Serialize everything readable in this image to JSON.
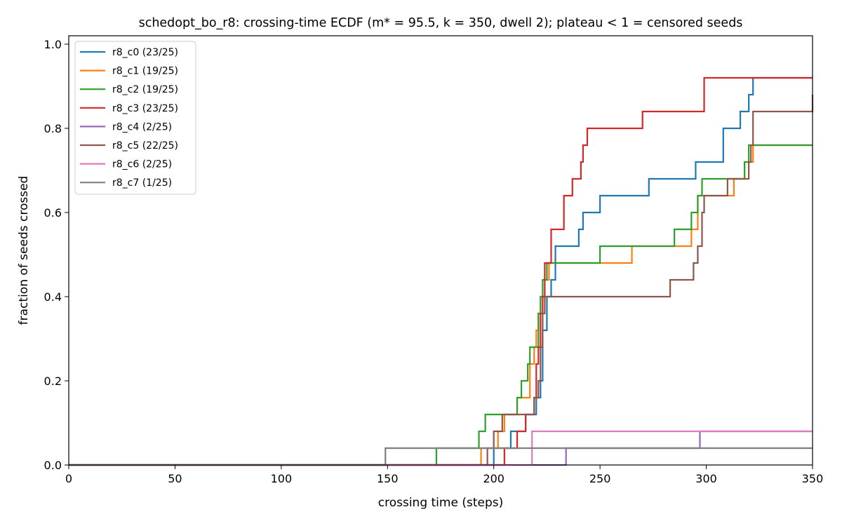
{
  "chart_data": {
    "type": "line",
    "step": "post",
    "title": "schedopt_bo_r8: crossing-time ECDF (m* = 95.5, k = 350, dwell 2); plateau < 1 = censored seeds",
    "xlabel": "crossing time (steps)",
    "ylabel": "fraction of seeds crossed",
    "xlim": [
      0,
      350
    ],
    "ylim": [
      0,
      1.02
    ],
    "xticks": [
      0,
      50,
      100,
      150,
      200,
      250,
      300,
      350
    ],
    "yticks": [
      0.0,
      0.2,
      0.4,
      0.6,
      0.8,
      1.0
    ],
    "xtick_labels": [
      "0",
      "50",
      "100",
      "150",
      "200",
      "250",
      "300",
      "350"
    ],
    "ytick_labels": [
      "0.0",
      "0.2",
      "0.4",
      "0.6",
      "0.8",
      "1.0"
    ],
    "grid": false,
    "legend_position": "top-left",
    "series": [
      {
        "name": "r8_c0 (23/25)",
        "color": "#1f77b4",
        "x": [
          0,
          200,
          208,
          215,
          220,
          222,
          223,
          225,
          227,
          229,
          240,
          242,
          250,
          273,
          295,
          308,
          316,
          320,
          322,
          350
        ],
        "y": [
          0,
          0.04,
          0.08,
          0.12,
          0.16,
          0.2,
          0.32,
          0.4,
          0.44,
          0.52,
          0.56,
          0.6,
          0.64,
          0.68,
          0.72,
          0.8,
          0.84,
          0.88,
          0.92,
          0.92
        ]
      },
      {
        "name": "r8_c1 (19/25)",
        "color": "#ff7f0e",
        "x": [
          0,
          194,
          202,
          205,
          211,
          217,
          219,
          220,
          221,
          222,
          224,
          226,
          250,
          265,
          287,
          293,
          296,
          313,
          318,
          322,
          350
        ],
        "y": [
          0,
          0.04,
          0.08,
          0.12,
          0.16,
          0.24,
          0.28,
          0.32,
          0.36,
          0.4,
          0.44,
          0.48,
          0.48,
          0.52,
          0.52,
          0.56,
          0.64,
          0.68,
          0.72,
          0.76,
          0.76
        ]
      },
      {
        "name": "r8_c2 (19/25)",
        "color": "#2ca02c",
        "x": [
          0,
          173,
          193,
          196,
          211,
          213,
          216,
          217,
          221,
          222,
          223,
          225,
          226,
          250,
          285,
          293,
          296,
          298,
          318,
          320,
          350
        ],
        "y": [
          0,
          0.04,
          0.08,
          0.12,
          0.16,
          0.2,
          0.24,
          0.28,
          0.36,
          0.4,
          0.44,
          0.48,
          0.48,
          0.52,
          0.56,
          0.6,
          0.64,
          0.68,
          0.72,
          0.76,
          0.76
        ]
      },
      {
        "name": "r8_c3 (23/25)",
        "color": "#d62728",
        "x": [
          0,
          205,
          211,
          215,
          219,
          220,
          221,
          222,
          223,
          224,
          227,
          233,
          237,
          241,
          242,
          244,
          270,
          299,
          350
        ],
        "y": [
          0,
          0.04,
          0.08,
          0.12,
          0.16,
          0.24,
          0.28,
          0.36,
          0.4,
          0.48,
          0.56,
          0.64,
          0.68,
          0.72,
          0.76,
          0.8,
          0.84,
          0.92,
          0.92
        ]
      },
      {
        "name": "r8_c4 (2/25)",
        "color": "#9467bd",
        "x": [
          0,
          234,
          297,
          350
        ],
        "y": [
          0,
          0.04,
          0.08,
          0.08
        ]
      },
      {
        "name": "r8_c5 (22/25)",
        "color": "#8c564b",
        "x": [
          0,
          197,
          200,
          204,
          219,
          221,
          222,
          223,
          224,
          270,
          283,
          294,
          296,
          298,
          299,
          310,
          320,
          321,
          322,
          350
        ],
        "y": [
          0,
          0.04,
          0.08,
          0.12,
          0.16,
          0.2,
          0.28,
          0.36,
          0.4,
          0.4,
          0.44,
          0.48,
          0.52,
          0.6,
          0.64,
          0.68,
          0.72,
          0.76,
          0.84,
          0.88
        ]
      },
      {
        "name": "r8_c6 (2/25)",
        "color": "#e377c2",
        "x": [
          0,
          218,
          218.01,
          350
        ],
        "y": [
          0,
          0.04,
          0.08,
          0.08
        ]
      },
      {
        "name": "r8_c7 (1/25)",
        "color": "#7f7f7f",
        "x": [
          0,
          149,
          350
        ],
        "y": [
          0,
          0.04,
          0.04
        ]
      }
    ]
  }
}
